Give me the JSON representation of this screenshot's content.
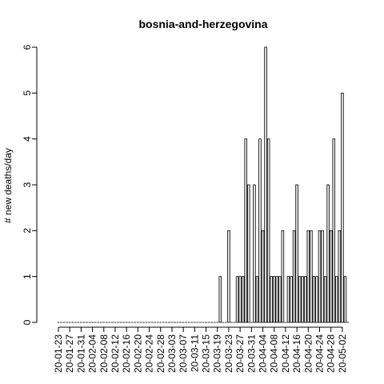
{
  "chart_data": {
    "type": "bar",
    "title": "bosnia-and-herzegovina",
    "xlabel": "",
    "ylabel": "# new deaths/day",
    "ylim": [
      0,
      6
    ],
    "y_ticks": [
      0,
      1,
      2,
      3,
      4,
      5,
      6
    ],
    "x_tick_labels": [
      "20-01-23",
      "20-01-27",
      "20-01-31",
      "20-02-04",
      "20-02-08",
      "20-02-12",
      "20-02-16",
      "20-02-20",
      "20-02-24",
      "20-02-28",
      "20-03-03",
      "20-03-07",
      "20-03-11",
      "20-03-15",
      "20-03-19",
      "20-03-23",
      "20-03-27",
      "20-03-31",
      "20-04-04",
      "20-04-08",
      "20-04-12",
      "20-04-16",
      "20-04-20",
      "20-04-24",
      "20-04-28",
      "20-05-02"
    ],
    "tick_every": 4,
    "categories": [
      "20-01-23",
      "20-01-24",
      "20-01-25",
      "20-01-26",
      "20-01-27",
      "20-01-28",
      "20-01-29",
      "20-01-30",
      "20-01-31",
      "20-02-01",
      "20-02-02",
      "20-02-03",
      "20-02-04",
      "20-02-05",
      "20-02-06",
      "20-02-07",
      "20-02-08",
      "20-02-09",
      "20-02-10",
      "20-02-11",
      "20-02-12",
      "20-02-13",
      "20-02-14",
      "20-02-15",
      "20-02-16",
      "20-02-17",
      "20-02-18",
      "20-02-19",
      "20-02-20",
      "20-02-21",
      "20-02-22",
      "20-02-23",
      "20-02-24",
      "20-02-25",
      "20-02-26",
      "20-02-27",
      "20-02-28",
      "20-02-29",
      "20-03-01",
      "20-03-02",
      "20-03-03",
      "20-03-04",
      "20-03-05",
      "20-03-06",
      "20-03-07",
      "20-03-08",
      "20-03-09",
      "20-03-10",
      "20-03-11",
      "20-03-12",
      "20-03-13",
      "20-03-14",
      "20-03-15",
      "20-03-16",
      "20-03-17",
      "20-03-18",
      "20-03-19",
      "20-03-20",
      "20-03-21",
      "20-03-22",
      "20-03-23",
      "20-03-24",
      "20-03-25",
      "20-03-26",
      "20-03-27",
      "20-03-28",
      "20-03-29",
      "20-03-30",
      "20-03-31",
      "20-04-01",
      "20-04-02",
      "20-04-03",
      "20-04-04",
      "20-04-05",
      "20-04-06",
      "20-04-07",
      "20-04-08",
      "20-04-09",
      "20-04-10",
      "20-04-11",
      "20-04-12",
      "20-04-13",
      "20-04-14",
      "20-04-15",
      "20-04-16",
      "20-04-17",
      "20-04-18",
      "20-04-19",
      "20-04-20",
      "20-04-21",
      "20-04-22",
      "20-04-23",
      "20-04-24",
      "20-04-25",
      "20-04-26",
      "20-04-27",
      "20-04-28",
      "20-04-29",
      "20-04-30",
      "20-05-01",
      "20-05-02",
      "20-05-03",
      "20-05-04"
    ],
    "values": [
      0,
      0,
      0,
      0,
      0,
      0,
      0,
      0,
      0,
      0,
      0,
      0,
      0,
      0,
      0,
      0,
      0,
      0,
      0,
      0,
      0,
      0,
      0,
      0,
      0,
      0,
      0,
      0,
      0,
      0,
      0,
      0,
      0,
      0,
      0,
      0,
      0,
      0,
      0,
      0,
      0,
      0,
      0,
      0,
      0,
      0,
      0,
      0,
      0,
      0,
      0,
      0,
      0,
      0,
      0,
      0,
      0,
      1,
      0,
      0,
      2,
      0,
      0,
      1,
      1,
      1,
      4,
      3,
      0,
      3,
      1,
      4,
      2,
      6,
      4,
      1,
      1,
      1,
      1,
      2,
      0,
      1,
      1,
      2,
      3,
      1,
      1,
      1,
      2,
      2,
      1,
      1,
      2,
      2,
      1,
      3,
      2,
      4,
      1,
      2,
      5,
      1,
      0
    ],
    "grid": false,
    "legend": "none"
  }
}
